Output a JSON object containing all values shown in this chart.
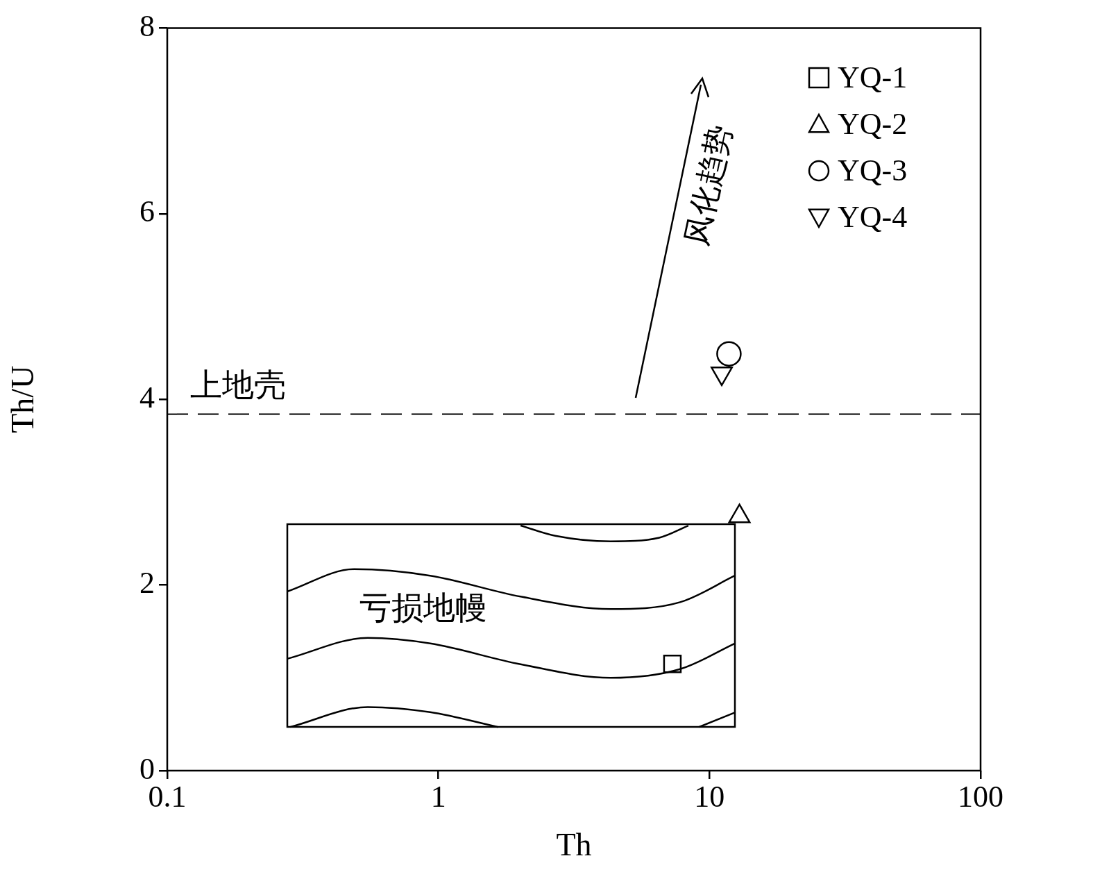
{
  "chart_data": {
    "type": "scatter",
    "xlabel": "Th",
    "ylabel": "Th/U",
    "log": "x",
    "xlim": [
      0.1,
      100
    ],
    "xticks": [
      0.1,
      1,
      10,
      100
    ],
    "ylim": [
      0,
      8
    ],
    "yticks": [
      0,
      2,
      4,
      6,
      8
    ],
    "grid": false,
    "legend": "top right",
    "series": [
      {
        "name": "YQ-1",
        "color": "#000000",
        "marker": "square",
        "x": [
          7.3
        ],
        "values": [
          1.15
        ]
      },
      {
        "name": "YQ-2",
        "color": "#000000",
        "marker": "triangle",
        "x": [
          12.9
        ],
        "values": [
          2.74
        ]
      },
      {
        "name": "YQ-3",
        "color": "#000000",
        "marker": "circle",
        "x": [
          11.8
        ],
        "values": [
          4.49
        ]
      },
      {
        "name": "YQ-4",
        "color": "#000000",
        "marker": "triangle-down",
        "x": [
          11.1
        ],
        "values": [
          4.28
        ]
      },
      {
        "type": "line",
        "color": "#000000",
        "marker": "none",
        "line_style": "solid",
        "x": [
          2.01,
          2.7,
          4.32,
          6.53,
          8.36
        ],
        "values": [
          2.64,
          2.53,
          2.47,
          2.51,
          2.64
        ]
      },
      {
        "type": "line",
        "color": "#000000",
        "marker": "none",
        "line_style": "solid",
        "x": [
          0.277,
          0.488,
          0.933,
          2.01,
          4.32,
          7.79,
          12.4
        ],
        "values": [
          1.93,
          2.17,
          2.1,
          1.875,
          1.74,
          1.815,
          2.1
        ]
      },
      {
        "type": "line",
        "color": "#000000",
        "marker": "none",
        "line_style": "solid",
        "x": [
          0.277,
          0.549,
          0.933,
          2.01,
          4.32,
          7.79,
          12.4
        ],
        "values": [
          1.205,
          1.43,
          1.37,
          1.146,
          1.0,
          1.094,
          1.37
        ]
      },
      {
        "type": "line",
        "color": "#000000",
        "marker": "none",
        "line_style": "solid",
        "x": [
          0.284,
          0.549,
          0.933,
          1.66
        ],
        "values": [
          0.47,
          0.685,
          0.63,
          0.47
        ]
      },
      {
        "type": "line",
        "color": "#000000",
        "marker": "none",
        "line_style": "solid",
        "x": [
          9.14,
          12.4
        ],
        "values": [
          0.47,
          0.625
        ]
      }
    ],
    "ref_lines": [
      {
        "axis": "y",
        "value": 3.84,
        "label": "上地壳",
        "line_style": "dashed",
        "color": "#000000"
      }
    ],
    "annotations": [
      "风化趋势",
      "亏损地幔"
    ]
  }
}
